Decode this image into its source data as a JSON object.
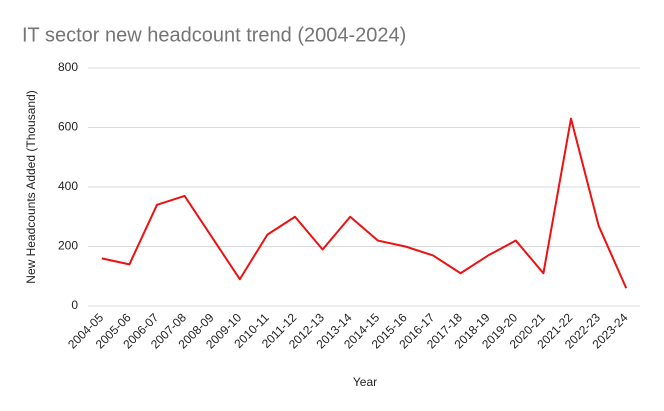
{
  "chart_data": {
    "type": "line",
    "title": "IT sector new headcount trend (2004-2024)",
    "x_label": "Year",
    "y_label": "New Headcounts Added (Thousand)",
    "categories": [
      "2004-05",
      "2005-06",
      "2006-07",
      "2007-08",
      "2008-09",
      "2009-10",
      "2010-11",
      "2011-12",
      "2012-13",
      "2013-14",
      "2014-15",
      "2015-16",
      "2016-17",
      "2017-18",
      "2018-19",
      "2019-20",
      "2020-21",
      "2021-22",
      "2022-23",
      "2023-24"
    ],
    "values": [
      160,
      140,
      340,
      370,
      230,
      90,
      240,
      300,
      190,
      300,
      220,
      200,
      170,
      110,
      170,
      220,
      110,
      630,
      270,
      60
    ],
    "color": "#ee1111",
    "ylim": [
      0,
      800
    ],
    "yticks": [
      0,
      200,
      400,
      600,
      800
    ],
    "grid": true
  }
}
